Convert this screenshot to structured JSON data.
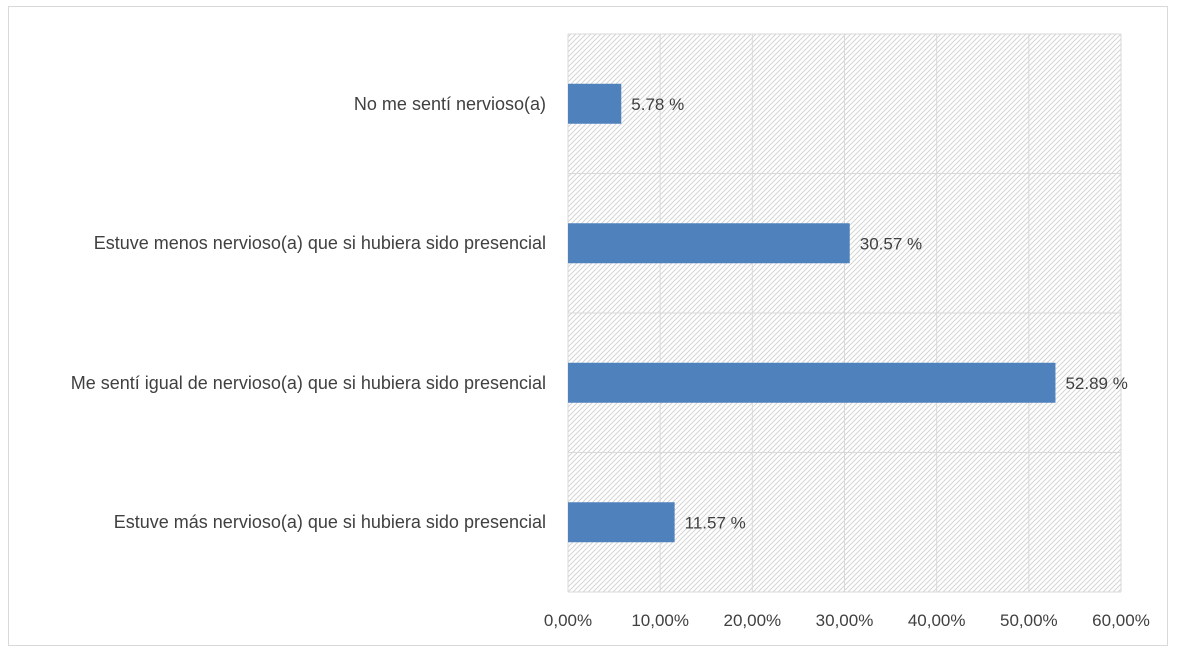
{
  "chart_data": {
    "type": "bar",
    "orientation": "horizontal",
    "title": "",
    "xlabel": "",
    "ylabel": "",
    "categories": [
      "No me sentí nervioso(a)",
      "Estuve menos nervioso(a) que si hubiera sido presencial",
      "Me sentí igual de nervioso(a) que si hubiera sido presencial",
      "Estuve más nervioso(a) que si hubiera sido presencial"
    ],
    "values": [
      5.78,
      30.57,
      52.89,
      11.57
    ],
    "data_labels": [
      "5.78 %",
      "30.57 %",
      "52.89 %",
      "11.57 %"
    ],
    "xlim": [
      0,
      60
    ],
    "x_ticks": [
      0,
      10,
      20,
      30,
      40,
      50,
      60
    ],
    "x_tick_labels": [
      "0,00%",
      "10,00%",
      "20,00%",
      "30,00%",
      "40,00%",
      "50,00%",
      "60,00%"
    ],
    "grid": true,
    "legend": "none",
    "colors": {
      "bar": "#4f81bd",
      "grid": "#d9d9d9",
      "hatch": "#d0d0d0"
    }
  }
}
